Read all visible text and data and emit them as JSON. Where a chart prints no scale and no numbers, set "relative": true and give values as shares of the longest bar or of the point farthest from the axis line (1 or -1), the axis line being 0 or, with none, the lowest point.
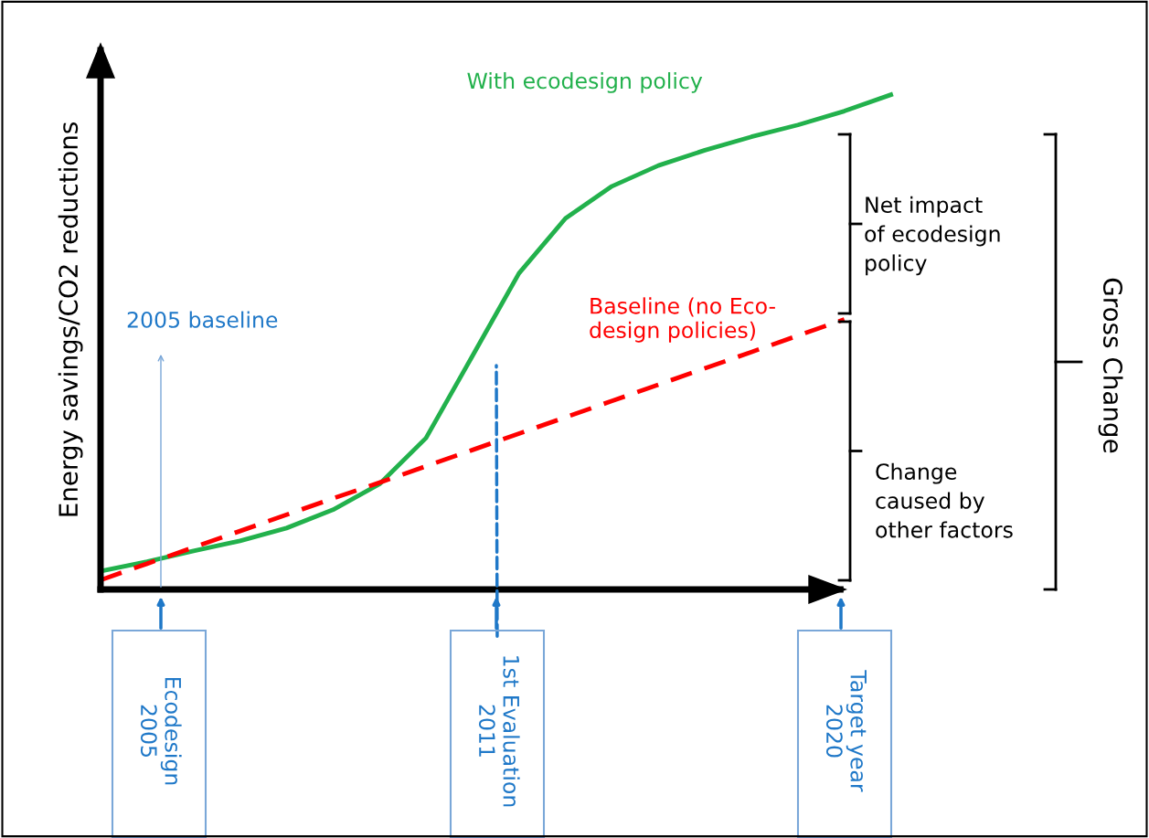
{
  "chart_data": {
    "type": "line",
    "relative": true,
    "ylabel": "Energy savings/CO2 reductions",
    "categories": [
      null,
      null,
      null,
      null,
      null,
      null,
      null,
      null,
      null,
      null,
      null,
      null,
      null,
      null,
      null,
      null,
      null,
      null
    ],
    "series": [
      {
        "name": "With ecodesign policy",
        "color": "#22b14c",
        "line_style": "solid",
        "values": [
          0.037,
          0.056,
          0.078,
          0.098,
          0.124,
          0.161,
          0.213,
          0.306,
          0.472,
          0.639,
          0.75,
          0.815,
          0.857,
          0.888,
          0.915,
          0.939,
          0.967,
          1
        ]
      },
      {
        "name": "Baseline (no Eco-design policies)",
        "color": "#ff0000",
        "line_style": "dashed",
        "values": [
          0.019,
          0.052,
          0.085,
          0.118,
          0.151,
          0.184,
          0.216,
          0.249,
          0.282,
          0.315,
          0.348,
          0.381,
          0.414,
          0.447,
          0.48,
          0.513,
          0.546,
          null
        ]
      }
    ],
    "annotations": [
      "2005 baseline",
      "Ecodesign\n2005",
      "1st Evaluation\n2011",
      "Target year\n2020",
      "Net impact\nof ecodesign\npolicy",
      "Change\ncaused by\nother factors",
      "Gross Change"
    ],
    "marker": "none"
  }
}
